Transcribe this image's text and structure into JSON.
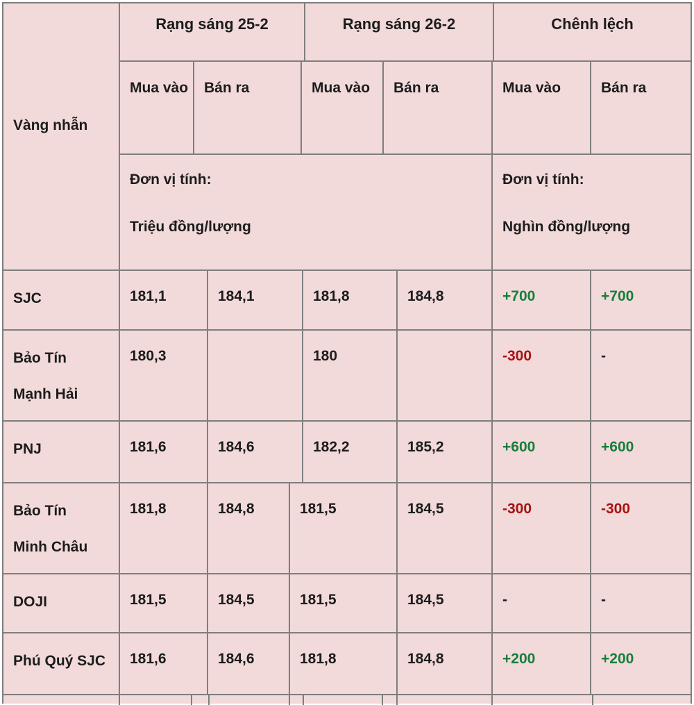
{
  "table": {
    "corner_label": "Vàng nhẫn",
    "col_groups": [
      {
        "label": "Rạng sáng 25-2"
      },
      {
        "label": "Rạng sáng 26-2"
      },
      {
        "label": "Chênh lệch"
      }
    ],
    "sub_headers": [
      "Mua vào",
      "Bán ra",
      "Mua vào",
      "Bán ra",
      "Mua vào",
      "Bán ra"
    ],
    "unit_notes": [
      {
        "line1": "Đơn vị tính:",
        "line2": "Triệu đồng/lượng"
      },
      {
        "line1": "Đơn vị tính:",
        "line2": "Nghìn đồng/lượng"
      }
    ],
    "rows": [
      {
        "name_lines": [
          "SJC"
        ],
        "prices": [
          "181,1",
          "184,1",
          "181,8",
          "184,8"
        ],
        "diffs": [
          {
            "text": "+700",
            "tone": "up"
          },
          {
            "text": "+700",
            "tone": "up"
          }
        ]
      },
      {
        "name_lines": [
          "Bảo Tín",
          "Mạnh Hải"
        ],
        "prices": [
          "180,3",
          "",
          "180",
          ""
        ],
        "diffs": [
          {
            "text": "-300",
            "tone": "down"
          },
          {
            "text": "-",
            "tone": "flat"
          }
        ]
      },
      {
        "name_lines": [
          "PNJ"
        ],
        "prices": [
          "181,6",
          "184,6",
          "182,2",
          "185,2"
        ],
        "diffs": [
          {
            "text": "+600",
            "tone": "up"
          },
          {
            "text": "+600",
            "tone": "up"
          }
        ]
      },
      {
        "name_lines": [
          "Bảo Tín",
          "Minh Châu"
        ],
        "prices": [
          "181,8",
          "184,8",
          "181,5",
          "184,5"
        ],
        "diffs": [
          {
            "text": "-300",
            "tone": "down"
          },
          {
            "text": "-300",
            "tone": "down"
          }
        ]
      },
      {
        "name_lines": [
          "DOJI"
        ],
        "prices": [
          "181,5",
          "184,5",
          "181,5",
          "184,5"
        ],
        "diffs": [
          {
            "text": "-",
            "tone": "flat"
          },
          {
            "text": "-",
            "tone": "flat"
          }
        ]
      },
      {
        "name_lines": [
          "Phú Quý SJC"
        ],
        "prices": [
          "181,6",
          "184,6",
          "181,8",
          "184,8"
        ],
        "diffs": [
          {
            "text": "+200",
            "tone": "up"
          },
          {
            "text": "+200",
            "tone": "up"
          }
        ]
      }
    ]
  },
  "colors": {
    "background": "#f2dada",
    "border": "#7e7e7e",
    "text": "#1c1c1c",
    "positive": "#157f3c",
    "negative": "#a81212"
  },
  "chart_data": {
    "type": "table",
    "title": "Giá vàng nhẫn rạng sáng 25-2 và 26-2",
    "row_header": "Vàng nhẫn",
    "column_groups": [
      "Rạng sáng 25-2",
      "Rạng sáng 26-2",
      "Chênh lệch"
    ],
    "columns": [
      "Mua vào (25-2)",
      "Bán ra (25-2)",
      "Mua vào (26-2)",
      "Bán ra (26-2)",
      "Chênh lệch Mua vào",
      "Chênh lệch Bán ra"
    ],
    "units": {
      "prices": "Triệu đồng/lượng",
      "diffs": "Nghìn đồng/lượng"
    },
    "rows": [
      {
        "name": "SJC",
        "values": [
          181.1,
          184.1,
          181.8,
          184.8
        ],
        "diff": [
          700,
          700
        ]
      },
      {
        "name": "Bảo Tín Mạnh Hải",
        "values": [
          180.3,
          null,
          180,
          null
        ],
        "diff": [
          -300,
          null
        ]
      },
      {
        "name": "PNJ",
        "values": [
          181.6,
          184.6,
          182.2,
          185.2
        ],
        "diff": [
          600,
          600
        ]
      },
      {
        "name": "Bảo Tín Minh Châu",
        "values": [
          181.8,
          184.8,
          181.5,
          184.5
        ],
        "diff": [
          -300,
          -300
        ]
      },
      {
        "name": "DOJI",
        "values": [
          181.5,
          184.5,
          181.5,
          184.5
        ],
        "diff": [
          null,
          null
        ]
      },
      {
        "name": "Phú Quý SJC",
        "values": [
          181.6,
          184.6,
          181.8,
          184.8
        ],
        "diff": [
          200,
          200
        ]
      }
    ]
  }
}
